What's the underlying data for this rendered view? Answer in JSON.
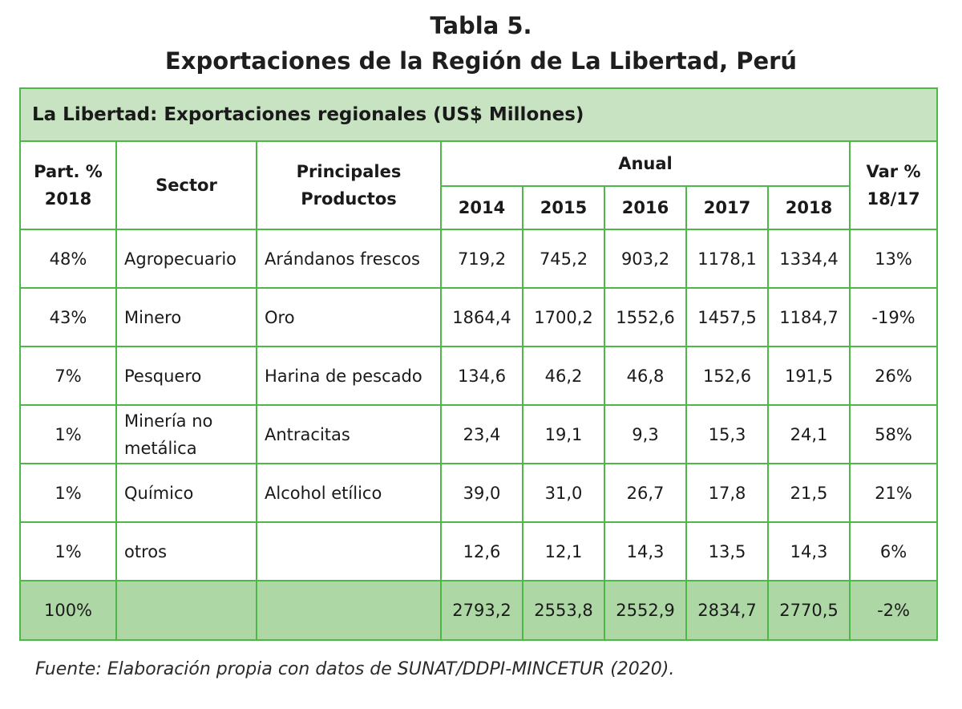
{
  "title": {
    "line1": "Tabla 5.",
    "line2": "Exportaciones de la Región de La Libertad, Perú"
  },
  "table": {
    "caption": "La Libertad: Exportaciones regionales (US$ Millones)",
    "headers": {
      "part": "Part. % 2018",
      "sector": "Sector",
      "productos": "Principales Productos",
      "anual": "Anual",
      "years": [
        "2014",
        "2015",
        "2016",
        "2017",
        "2018"
      ],
      "var": "Var % 18/17"
    },
    "rows": [
      {
        "part": "48%",
        "sector": "Agropecuario",
        "producto": "Arándanos frescos",
        "values": [
          "719,2",
          "745,2",
          "903,2",
          "1178,1",
          "1334,4"
        ],
        "var": "13%"
      },
      {
        "part": "43%",
        "sector": "Minero",
        "producto": "Oro",
        "values": [
          "1864,4",
          "1700,2",
          "1552,6",
          "1457,5",
          "1184,7"
        ],
        "var": "-19%"
      },
      {
        "part": "7%",
        "sector": "Pesquero",
        "producto": "Harina de pescado",
        "values": [
          "134,6",
          "46,2",
          "46,8",
          "152,6",
          "191,5"
        ],
        "var": "26%"
      },
      {
        "part": "1%",
        "sector": "Minería no metálica",
        "producto": "Antracitas",
        "values": [
          "23,4",
          "19,1",
          "9,3",
          "15,3",
          "24,1"
        ],
        "var": "58%"
      },
      {
        "part": "1%",
        "sector": "Químico",
        "producto": "Alcohol etílico",
        "values": [
          "39,0",
          "31,0",
          "26,7",
          "17,8",
          "21,5"
        ],
        "var": "21%"
      },
      {
        "part": "1%",
        "sector": "otros",
        "producto": "",
        "values": [
          "12,6",
          "12,1",
          "14,3",
          "13,5",
          "14,3"
        ],
        "var": "6%"
      }
    ],
    "total": {
      "part": "100%",
      "sector": "",
      "producto": "",
      "values": [
        "2793,2",
        "2553,8",
        "2552,9",
        "2834,7",
        "2770,5"
      ],
      "var": "-2%"
    }
  },
  "source": "Fuente: Elaboración propia con datos de SUNAT/DDPI-MINCETUR (2020)."
}
